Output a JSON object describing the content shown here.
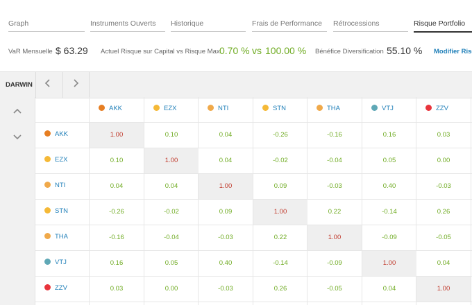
{
  "tabs": [
    {
      "label": "Graph"
    },
    {
      "label": "Instruments Ouverts"
    },
    {
      "label": "Historique"
    },
    {
      "label": "Frais de Performance"
    },
    {
      "label": "Rétrocessions"
    },
    {
      "label": "Risque Portfolio",
      "active": true
    }
  ],
  "summary": {
    "var_label": "VaR Mensuelle",
    "var_value": "$ 63.29",
    "risk_label": "Actuel Risque sur Capital vs Risque Max.",
    "risk_current": "0.70 %",
    "risk_vs": "vs",
    "risk_max": "100.00 %",
    "div_label": "Bénéfice Diversification",
    "div_value": "55.10 %",
    "modify_link": "Modifier Risq"
  },
  "toolbar": {
    "label": "DARWIN",
    "prev_icon": "chevron-left-icon",
    "next_icon": "chevron-right-icon",
    "up_icon": "chevron-up-icon",
    "down_icon": "chevron-down-icon"
  },
  "colors": {
    "accent": "#1f7fb8",
    "positive_value": "#6fab22",
    "diagonal_value": "#c0392b",
    "diagonal_bg": "#efefef"
  },
  "matrix": {
    "assets": [
      {
        "name": "AKK",
        "color": "#e67e22"
      },
      {
        "name": "EZX",
        "color": "#f5b937"
      },
      {
        "name": "NTI",
        "color": "#f0a94a"
      },
      {
        "name": "STN",
        "color": "#f5b937"
      },
      {
        "name": "THA",
        "color": "#f0a94a"
      },
      {
        "name": "VTJ",
        "color": "#5fa8b6"
      },
      {
        "name": "ZZV",
        "color": "#e8343c"
      }
    ],
    "values": [
      [
        "1.00",
        "0.10",
        "0.04",
        "-0.26",
        "-0.16",
        "0.16",
        "0.03"
      ],
      [
        "0.10",
        "1.00",
        "0.04",
        "-0.02",
        "-0.04",
        "0.05",
        "0.00"
      ],
      [
        "0.04",
        "0.04",
        "1.00",
        "0.09",
        "-0.03",
        "0.40",
        "-0.03"
      ],
      [
        "-0.26",
        "-0.02",
        "0.09",
        "1.00",
        "0.22",
        "-0.14",
        "0.26"
      ],
      [
        "-0.16",
        "-0.04",
        "-0.03",
        "0.22",
        "1.00",
        "-0.09",
        "-0.05"
      ],
      [
        "0.16",
        "0.05",
        "0.40",
        "-0.14",
        "-0.09",
        "1.00",
        "0.04"
      ],
      [
        "0.03",
        "0.00",
        "-0.03",
        "0.26",
        "-0.05",
        "0.04",
        "1.00"
      ]
    ]
  }
}
